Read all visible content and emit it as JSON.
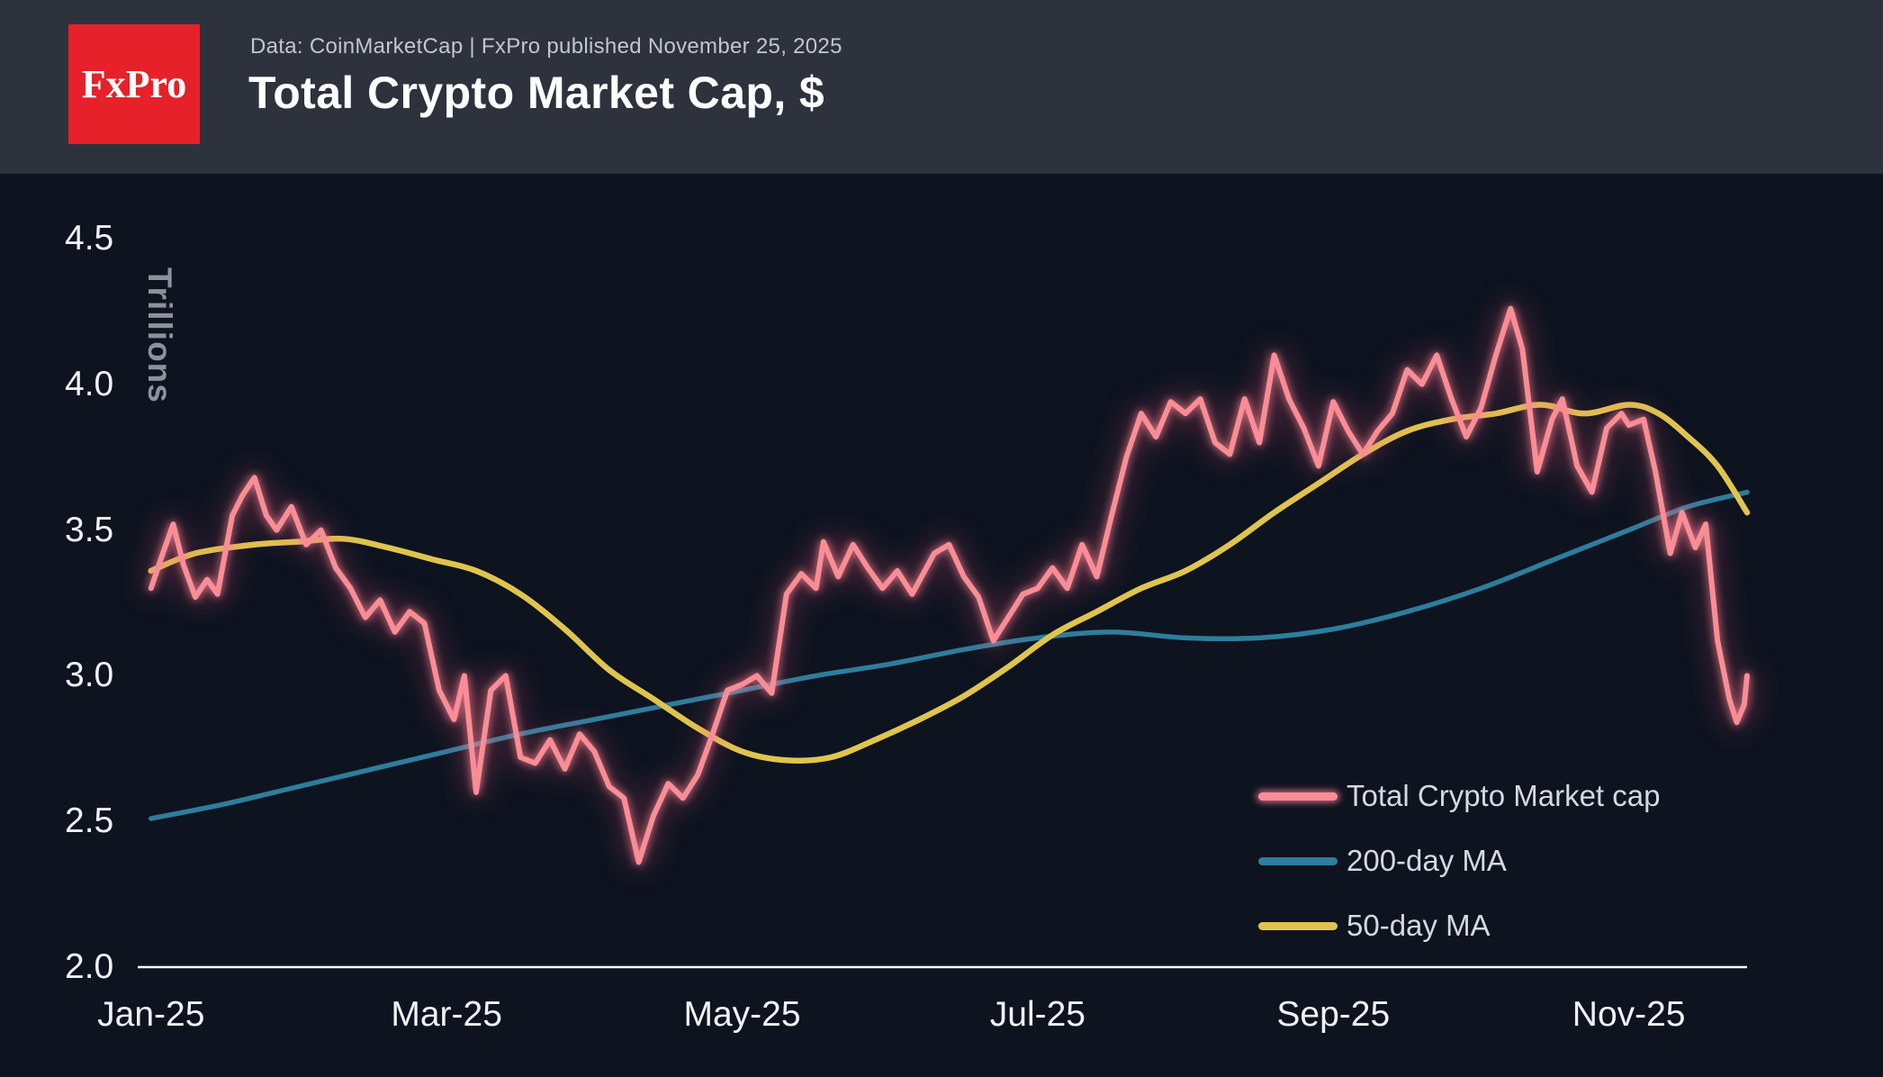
{
  "header": {
    "logo_text": "FxPro",
    "logo_bg": "#e62129",
    "source_line": "Data: CoinMarketCap | FxPro published November 25, 2025",
    "title": "Total Crypto Market Cap, $",
    "bg": "#2e323d"
  },
  "chart_data": {
    "type": "line",
    "title": "Total Crypto Market Cap, $",
    "xlabel": "",
    "ylabel": "Trillions",
    "background": "#0e1320",
    "grid": false,
    "legend_position": "lower right",
    "ylim": [
      2.0,
      4.5
    ],
    "xlim": [
      -0.09,
      10.8
    ],
    "y_ticks": [
      {
        "value": 4.5,
        "label": "4.5"
      },
      {
        "value": 4.0,
        "label": "4.0"
      },
      {
        "value": 3.5,
        "label": "3.5"
      },
      {
        "value": 3.0,
        "label": "3.0"
      },
      {
        "value": 2.5,
        "label": "2.5"
      },
      {
        "value": 2.0,
        "label": "2.0"
      }
    ],
    "x_ticks": [
      {
        "value": 0,
        "label": "Jan-25"
      },
      {
        "value": 2,
        "label": "Mar-25"
      },
      {
        "value": 4,
        "label": "May-25"
      },
      {
        "value": 6,
        "label": "Jul-25"
      },
      {
        "value": 8,
        "label": "Sep-25"
      },
      {
        "value": 10,
        "label": "Nov-25"
      }
    ],
    "axis_color": "#ffffff",
    "series": [
      {
        "name": "Total Crypto Market cap",
        "color": "#f98d96",
        "width": 6,
        "glow": true,
        "smooth": false,
        "points": [
          [
            0.0,
            3.3
          ],
          [
            0.08,
            3.42
          ],
          [
            0.15,
            3.52
          ],
          [
            0.22,
            3.38
          ],
          [
            0.3,
            3.27
          ],
          [
            0.38,
            3.33
          ],
          [
            0.45,
            3.28
          ],
          [
            0.55,
            3.55
          ],
          [
            0.62,
            3.62
          ],
          [
            0.7,
            3.68
          ],
          [
            0.78,
            3.55
          ],
          [
            0.85,
            3.5
          ],
          [
            0.95,
            3.58
          ],
          [
            1.05,
            3.45
          ],
          [
            1.15,
            3.5
          ],
          [
            1.25,
            3.37
          ],
          [
            1.35,
            3.3
          ],
          [
            1.45,
            3.2
          ],
          [
            1.55,
            3.26
          ],
          [
            1.65,
            3.15
          ],
          [
            1.75,
            3.22
          ],
          [
            1.85,
            3.18
          ],
          [
            1.95,
            2.95
          ],
          [
            2.05,
            2.85
          ],
          [
            2.12,
            3.0
          ],
          [
            2.2,
            2.6
          ],
          [
            2.3,
            2.95
          ],
          [
            2.4,
            3.0
          ],
          [
            2.5,
            2.72
          ],
          [
            2.6,
            2.7
          ],
          [
            2.7,
            2.78
          ],
          [
            2.8,
            2.68
          ],
          [
            2.9,
            2.8
          ],
          [
            3.0,
            2.74
          ],
          [
            3.1,
            2.62
          ],
          [
            3.2,
            2.58
          ],
          [
            3.3,
            2.36
          ],
          [
            3.4,
            2.52
          ],
          [
            3.5,
            2.63
          ],
          [
            3.6,
            2.58
          ],
          [
            3.7,
            2.66
          ],
          [
            3.8,
            2.8
          ],
          [
            3.9,
            2.95
          ],
          [
            4.0,
            2.97
          ],
          [
            4.1,
            3.0
          ],
          [
            4.2,
            2.94
          ],
          [
            4.3,
            3.28
          ],
          [
            4.4,
            3.35
          ],
          [
            4.5,
            3.3
          ],
          [
            4.55,
            3.46
          ],
          [
            4.65,
            3.34
          ],
          [
            4.75,
            3.45
          ],
          [
            4.85,
            3.37
          ],
          [
            4.95,
            3.3
          ],
          [
            5.05,
            3.36
          ],
          [
            5.15,
            3.28
          ],
          [
            5.3,
            3.42
          ],
          [
            5.4,
            3.45
          ],
          [
            5.5,
            3.34
          ],
          [
            5.6,
            3.27
          ],
          [
            5.7,
            3.12
          ],
          [
            5.8,
            3.2
          ],
          [
            5.9,
            3.28
          ],
          [
            6.0,
            3.3
          ],
          [
            6.1,
            3.37
          ],
          [
            6.2,
            3.3
          ],
          [
            6.3,
            3.45
          ],
          [
            6.4,
            3.34
          ],
          [
            6.5,
            3.55
          ],
          [
            6.6,
            3.75
          ],
          [
            6.7,
            3.9
          ],
          [
            6.8,
            3.82
          ],
          [
            6.9,
            3.94
          ],
          [
            7.0,
            3.9
          ],
          [
            7.1,
            3.95
          ],
          [
            7.2,
            3.8
          ],
          [
            7.3,
            3.76
          ],
          [
            7.4,
            3.95
          ],
          [
            7.5,
            3.8
          ],
          [
            7.6,
            4.1
          ],
          [
            7.7,
            3.95
          ],
          [
            7.8,
            3.85
          ],
          [
            7.9,
            3.72
          ],
          [
            8.0,
            3.94
          ],
          [
            8.1,
            3.84
          ],
          [
            8.2,
            3.76
          ],
          [
            8.3,
            3.84
          ],
          [
            8.4,
            3.9
          ],
          [
            8.5,
            4.05
          ],
          [
            8.6,
            4.0
          ],
          [
            8.7,
            4.1
          ],
          [
            8.8,
            3.95
          ],
          [
            8.9,
            3.82
          ],
          [
            9.0,
            3.92
          ],
          [
            9.1,
            4.1
          ],
          [
            9.2,
            4.26
          ],
          [
            9.28,
            4.12
          ],
          [
            9.38,
            3.7
          ],
          [
            9.48,
            3.88
          ],
          [
            9.55,
            3.95
          ],
          [
            9.65,
            3.72
          ],
          [
            9.75,
            3.63
          ],
          [
            9.85,
            3.85
          ],
          [
            9.95,
            3.9
          ],
          [
            10.0,
            3.86
          ],
          [
            10.1,
            3.88
          ],
          [
            10.18,
            3.7
          ],
          [
            10.28,
            3.42
          ],
          [
            10.36,
            3.56
          ],
          [
            10.45,
            3.44
          ],
          [
            10.52,
            3.52
          ],
          [
            10.6,
            3.12
          ],
          [
            10.68,
            2.92
          ],
          [
            10.73,
            2.84
          ],
          [
            10.78,
            2.9
          ],
          [
            10.8,
            3.0
          ]
        ]
      },
      {
        "name": "200-day MA",
        "color": "#2e7d9c",
        "width": 5.5,
        "glow": false,
        "smooth": true,
        "points": [
          [
            0,
            2.51
          ],
          [
            0.5,
            2.56
          ],
          [
            1,
            2.62
          ],
          [
            1.5,
            2.68
          ],
          [
            2,
            2.74
          ],
          [
            2.5,
            2.8
          ],
          [
            3,
            2.85
          ],
          [
            3.5,
            2.9
          ],
          [
            4,
            2.95
          ],
          [
            4.5,
            3.0
          ],
          [
            5,
            3.04
          ],
          [
            5.5,
            3.09
          ],
          [
            6,
            3.13
          ],
          [
            6.5,
            3.15
          ],
          [
            7,
            3.13
          ],
          [
            7.5,
            3.13
          ],
          [
            8,
            3.16
          ],
          [
            8.5,
            3.22
          ],
          [
            9,
            3.3
          ],
          [
            9.5,
            3.4
          ],
          [
            10,
            3.5
          ],
          [
            10.4,
            3.58
          ],
          [
            10.8,
            3.63
          ]
        ]
      },
      {
        "name": "50-day MA",
        "color": "#dfc54d",
        "width": 6.5,
        "glow": false,
        "smooth": true,
        "points": [
          [
            0,
            3.36
          ],
          [
            0.3,
            3.42
          ],
          [
            0.7,
            3.45
          ],
          [
            1,
            3.46
          ],
          [
            1.3,
            3.47
          ],
          [
            1.6,
            3.44
          ],
          [
            1.9,
            3.4
          ],
          [
            2.2,
            3.36
          ],
          [
            2.5,
            3.28
          ],
          [
            2.8,
            3.16
          ],
          [
            3.1,
            3.02
          ],
          [
            3.4,
            2.92
          ],
          [
            3.7,
            2.82
          ],
          [
            4,
            2.74
          ],
          [
            4.3,
            2.71
          ],
          [
            4.6,
            2.72
          ],
          [
            4.9,
            2.78
          ],
          [
            5.2,
            2.85
          ],
          [
            5.5,
            2.93
          ],
          [
            5.8,
            3.03
          ],
          [
            6.1,
            3.14
          ],
          [
            6.4,
            3.22
          ],
          [
            6.7,
            3.3
          ],
          [
            7,
            3.36
          ],
          [
            7.3,
            3.45
          ],
          [
            7.6,
            3.56
          ],
          [
            7.9,
            3.66
          ],
          [
            8.2,
            3.76
          ],
          [
            8.5,
            3.84
          ],
          [
            8.8,
            3.88
          ],
          [
            9.1,
            3.9
          ],
          [
            9.4,
            3.93
          ],
          [
            9.7,
            3.9
          ],
          [
            10,
            3.93
          ],
          [
            10.2,
            3.9
          ],
          [
            10.4,
            3.82
          ],
          [
            10.6,
            3.72
          ],
          [
            10.8,
            3.56
          ]
        ]
      }
    ]
  }
}
